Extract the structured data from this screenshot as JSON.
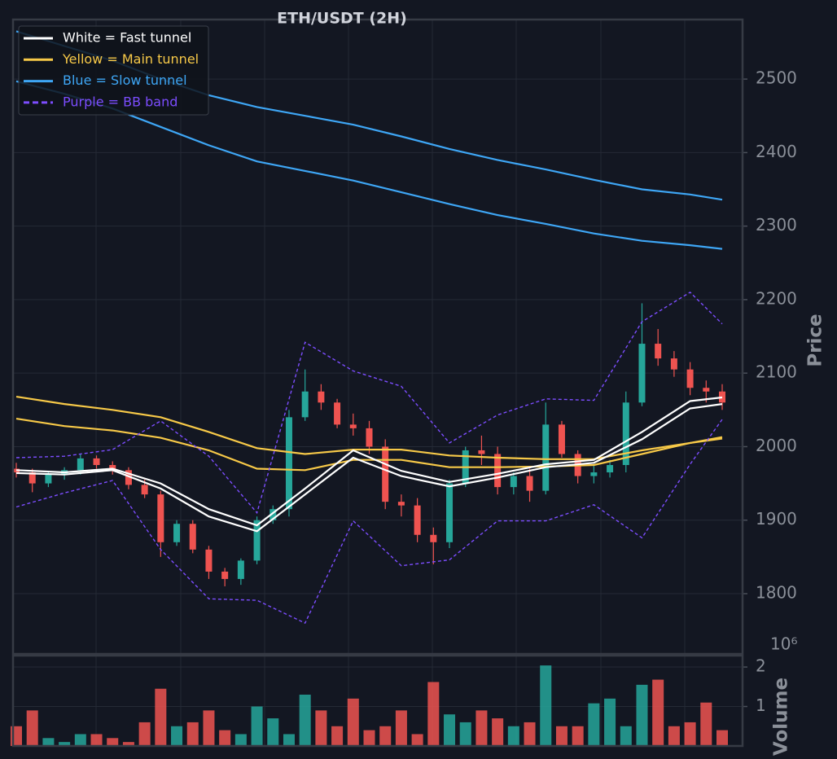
{
  "chart_data": [
    {
      "type": "candlestick",
      "title": "ETH/USDT (2H)",
      "y_label": "Price",
      "up_color": "#26a69a",
      "down_color": "#ef5350",
      "grid": true,
      "ylim": [
        1718,
        2581
      ],
      "yticks": [
        1800,
        1900,
        2000,
        2100,
        2200,
        2300,
        2400,
        2500
      ],
      "candles": {
        "open": [
          1970,
          1965,
          1950,
          1962,
          1968,
          1984,
          1975,
          1968,
          1948,
          1935,
          1870,
          1895,
          1860,
          1830,
          1820,
          1845,
          1900,
          1915,
          2040,
          2075,
          2060,
          2030,
          2025,
          2000,
          1925,
          1920,
          1880,
          1870,
          1950,
          1995,
          1990,
          1945,
          1960,
          1940,
          2030,
          1990,
          1960,
          1965,
          1975,
          2060,
          2140,
          2120,
          2105,
          2080,
          2075
        ],
        "high": [
          1978,
          1970,
          1966,
          1972,
          1990,
          1988,
          1980,
          1972,
          1955,
          1940,
          1900,
          1900,
          1865,
          1835,
          1848,
          1905,
          1920,
          2050,
          2105,
          2085,
          2065,
          2045,
          2035,
          2010,
          1935,
          1930,
          1890,
          1955,
          2000,
          2015,
          2000,
          1965,
          1970,
          2060,
          2035,
          1995,
          1975,
          1982,
          2075,
          2195,
          2160,
          2130,
          2115,
          2090,
          2085
        ],
        "low": [
          1958,
          1938,
          1945,
          1955,
          1962,
          1970,
          1962,
          1942,
          1930,
          1850,
          1865,
          1855,
          1820,
          1810,
          1812,
          1840,
          1895,
          1905,
          2035,
          2050,
          2025,
          2015,
          1990,
          1915,
          1905,
          1870,
          1840,
          1862,
          1945,
          1975,
          1935,
          1935,
          1925,
          1935,
          1985,
          1950,
          1950,
          1958,
          1965,
          2055,
          2110,
          2095,
          2070,
          2060,
          2050
        ],
        "close": [
          1965,
          1950,
          1962,
          1968,
          1984,
          1975,
          1968,
          1948,
          1935,
          1870,
          1895,
          1860,
          1830,
          1820,
          1845,
          1900,
          1915,
          2040,
          2075,
          2060,
          2030,
          2025,
          2000,
          1925,
          1920,
          1880,
          1870,
          1950,
          1995,
          1990,
          1945,
          1960,
          1940,
          2030,
          1990,
          1960,
          1965,
          1975,
          2060,
          2140,
          2120,
          2105,
          2080,
          2075,
          2060
        ]
      },
      "series": [
        {
          "name": "Blue = Slow tunnel",
          "color": "#3ea6f5",
          "x": [
            0,
            3,
            6,
            9,
            12,
            15,
            18,
            21,
            24,
            27,
            30,
            33,
            36,
            39,
            42,
            44
          ],
          "values": [
            2565,
            2545,
            2525,
            2500,
            2478,
            2462,
            2450,
            2438,
            2422,
            2405,
            2390,
            2377,
            2363,
            2350,
            2343,
            2336
          ]
        },
        {
          "color": "#3ea6f5",
          "x": [
            0,
            3,
            6,
            9,
            12,
            15,
            18,
            21,
            24,
            27,
            30,
            33,
            36,
            39,
            42,
            44
          ],
          "values": [
            2497,
            2480,
            2460,
            2435,
            2410,
            2388,
            2375,
            2362,
            2346,
            2330,
            2315,
            2303,
            2290,
            2280,
            2274,
            2269
          ]
        },
        {
          "name": "Yellow = Main tunnel",
          "color": "#f7c948",
          "x": [
            0,
            3,
            6,
            9,
            12,
            15,
            18,
            21,
            24,
            27,
            30,
            33,
            36,
            39,
            42,
            44
          ],
          "values": [
            2068,
            2058,
            2050,
            2040,
            2020,
            1998,
            1990,
            1996,
            1996,
            1988,
            1985,
            1983,
            1983,
            1995,
            2005,
            2013
          ]
        },
        {
          "color": "#f7c948",
          "x": [
            0,
            3,
            6,
            9,
            12,
            15,
            18,
            21,
            24,
            27,
            30,
            33,
            36,
            39,
            42,
            44
          ],
          "values": [
            2038,
            2028,
            2022,
            2012,
            1995,
            1970,
            1968,
            1982,
            1982,
            1972,
            1972,
            1973,
            1975,
            1990,
            2005,
            2011
          ]
        },
        {
          "name": "White = Fast tunnel",
          "color": "#ffffff",
          "x": [
            0,
            3,
            6,
            9,
            12,
            15,
            18,
            21,
            24,
            27,
            30,
            33,
            36,
            39,
            42,
            44
          ],
          "values": [
            1968,
            1965,
            1970,
            1950,
            1915,
            1893,
            1943,
            1995,
            1967,
            1952,
            1963,
            1976,
            1982,
            2020,
            2062,
            2067
          ]
        },
        {
          "color": "#ffffff",
          "x": [
            0,
            3,
            6,
            9,
            12,
            15,
            18,
            21,
            24,
            27,
            30,
            33,
            36,
            39,
            42,
            44
          ],
          "values": [
            1964,
            1962,
            1968,
            1943,
            1905,
            1885,
            1935,
            1985,
            1960,
            1946,
            1958,
            1972,
            1978,
            2010,
            2052,
            2058
          ]
        },
        {
          "name": "Purple = BB band",
          "color": "#7c4dff",
          "dashed": true,
          "x": [
            0,
            3,
            6,
            9,
            12,
            15,
            18,
            21,
            24,
            27,
            30,
            33,
            36,
            39,
            42,
            44
          ],
          "values": [
            1985,
            1987,
            1996,
            2035,
            1987,
            1910,
            2142,
            2103,
            2082,
            2005,
            2043,
            2065,
            2063,
            2170,
            2210,
            2167
          ]
        },
        {
          "color": "#7c4dff",
          "dashed": true,
          "x": [
            0,
            3,
            6,
            9,
            12,
            15,
            18,
            21,
            24,
            27,
            30,
            33,
            36,
            39,
            42,
            44
          ],
          "values": [
            1918,
            1937,
            1954,
            1860,
            1793,
            1791,
            1760,
            1899,
            1838,
            1846,
            1899,
            1899,
            1921,
            1876,
            1976,
            2037
          ]
        }
      ],
      "legend_order": [
        4,
        2,
        0,
        6
      ]
    },
    {
      "type": "volume",
      "y_label": "Volume",
      "offset_label": "10⁶",
      "grid": true,
      "ylim": [
        0,
        2.29
      ],
      "yticks": [
        1,
        2
      ],
      "values": [
        0.5,
        0.9,
        0.2,
        0.1,
        0.3,
        0.3,
        0.2,
        0.1,
        0.6,
        1.45,
        0.5,
        0.6,
        0.9,
        0.4,
        0.3,
        1.0,
        0.7,
        0.3,
        1.3,
        0.9,
        0.5,
        1.2,
        0.4,
        0.5,
        0.9,
        0.3,
        1.62,
        0.8,
        0.6,
        0.9,
        0.7,
        0.5,
        0.6,
        2.04,
        0.5,
        0.5,
        1.08,
        1.2,
        0.5,
        1.55,
        1.68,
        0.5,
        0.6,
        1.1,
        0.4
      ]
    }
  ]
}
